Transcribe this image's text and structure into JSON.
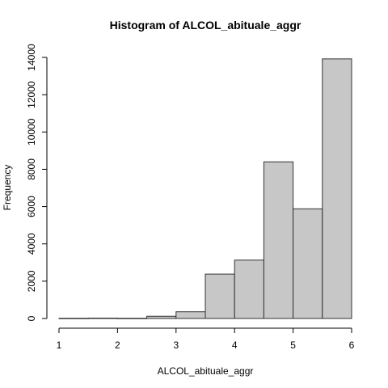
{
  "chart_data": {
    "type": "bar",
    "title": "Histogram of ALCOL_abituale_aggr",
    "xlabel": "ALCOL_abituale_aggr",
    "ylabel": "Frequency",
    "bins": [
      {
        "start": 1.0,
        "end": 1.5,
        "value": 10
      },
      {
        "start": 1.5,
        "end": 2.0,
        "value": 20
      },
      {
        "start": 2.0,
        "end": 2.5,
        "value": 10
      },
      {
        "start": 2.5,
        "end": 3.0,
        "value": 120
      },
      {
        "start": 3.0,
        "end": 3.5,
        "value": 360
      },
      {
        "start": 3.5,
        "end": 4.0,
        "value": 2380
      },
      {
        "start": 4.0,
        "end": 4.5,
        "value": 3130
      },
      {
        "start": 4.5,
        "end": 5.0,
        "value": 8400
      },
      {
        "start": 5.0,
        "end": 5.5,
        "value": 5880
      },
      {
        "start": 5.5,
        "end": 6.0,
        "value": 13920
      }
    ],
    "x_ticks": [
      1,
      2,
      3,
      4,
      5,
      6
    ],
    "y_ticks": [
      0,
      2000,
      4000,
      6000,
      8000,
      10000,
      12000,
      14000
    ],
    "xlim": [
      1,
      6
    ],
    "ylim": [
      0,
      14000
    ],
    "grid": false,
    "colors": {
      "bar_fill": "#c7c7c7",
      "bar_stroke": "#333333"
    }
  }
}
